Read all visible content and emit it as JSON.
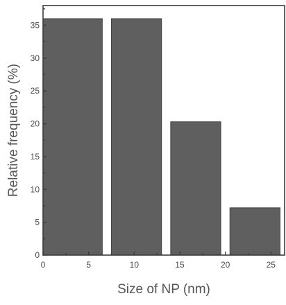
{
  "chart_data": {
    "type": "bar",
    "bins": [
      {
        "from": 0,
        "to": 6.5,
        "value": 36
      },
      {
        "from": 7.5,
        "to": 13,
        "value": 36
      },
      {
        "from": 14,
        "to": 19.5,
        "value": 20.3
      },
      {
        "from": 20.5,
        "to": 26,
        "value": 7.2
      }
    ],
    "xlabel": "Size of NP (nm)",
    "ylabel": "Relative frequency (%)",
    "xlim": [
      0,
      26.5
    ],
    "ylim": [
      0,
      38
    ],
    "x_ticks": [
      "0",
      "5",
      "10",
      "15",
      "20",
      "25"
    ],
    "y_ticks": [
      "0",
      "5",
      "10",
      "15",
      "20",
      "25",
      "30",
      "35"
    ],
    "grid": false,
    "colors": {
      "bar": "#5f5f5f",
      "axis": "#3c3c3c"
    }
  }
}
